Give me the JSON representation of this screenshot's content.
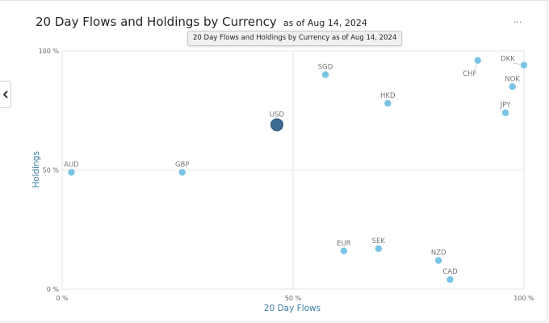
{
  "title": {
    "main": "20 Day Flows and Holdings by Currency",
    "sub": "as of Aug 14, 2024"
  },
  "tooltip": "20 Day Flows and Holdings by Currency as of Aug 14, 2024",
  "more_label": "...",
  "colors": {
    "point": "#79c4e4",
    "highlight": "#3d6b93",
    "axis_title": "#3a7ca5",
    "grid": "#e6e6e6"
  },
  "chart_data": {
    "type": "scatter",
    "xlabel": "20 Day Flows",
    "ylabel": "Holdings",
    "xlim": [
      0,
      100
    ],
    "ylim": [
      0,
      100
    ],
    "x_ticks": [
      "0 %",
      "50 %",
      "100 %"
    ],
    "y_ticks": [
      "0 %",
      "50 %",
      "100 %"
    ],
    "grid": true,
    "points": [
      {
        "label": "AUD",
        "x": 2,
        "y": 49
      },
      {
        "label": "GBP",
        "x": 26,
        "y": 49
      },
      {
        "label": "USD",
        "x": 46.5,
        "y": 69,
        "highlight": true
      },
      {
        "label": "SGD",
        "x": 57,
        "y": 90
      },
      {
        "label": "HKD",
        "x": 70.5,
        "y": 78
      },
      {
        "label": "CHF",
        "x": 90,
        "y": 96
      },
      {
        "label": "DKK",
        "x": 100,
        "y": 94
      },
      {
        "label": "NOK",
        "x": 97.5,
        "y": 85
      },
      {
        "label": "JPY",
        "x": 96,
        "y": 74
      },
      {
        "label": "EUR",
        "x": 61,
        "y": 16
      },
      {
        "label": "SEK",
        "x": 68.5,
        "y": 17
      },
      {
        "label": "NZD",
        "x": 81.5,
        "y": 12
      },
      {
        "label": "CAD",
        "x": 84,
        "y": 4
      }
    ]
  }
}
